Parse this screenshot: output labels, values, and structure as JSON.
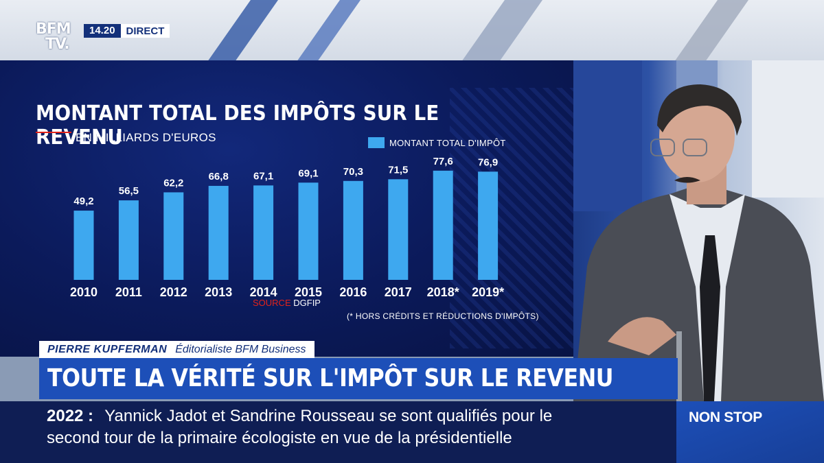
{
  "channel": {
    "logo": "BFM TV.",
    "logo_line1": "BFM",
    "logo_line2": "TV.",
    "time": "14.20",
    "live_label": "DIRECT"
  },
  "chart_data": {
    "type": "bar",
    "title": "MONTANT TOTAL DES IMPÔTS SUR LE REVENU",
    "subtitle": "EN MILLIARDS D'EUROS",
    "categories": [
      "2010",
      "2011",
      "2012",
      "2013",
      "2014",
      "2015",
      "2016",
      "2017",
      "2018*",
      "2019*"
    ],
    "series": [
      {
        "name": "MONTANT TOTAL D'IMPÔT",
        "values": [
          49.2,
          56.5,
          62.2,
          66.8,
          67.1,
          69.1,
          70.3,
          71.5,
          77.6,
          76.9
        ],
        "labels": [
          "49,2",
          "56,5",
          "62,2",
          "66,8",
          "67,1",
          "69,1",
          "70,3",
          "71,5",
          "77,6",
          "76,9"
        ]
      }
    ],
    "ylim": [
      0,
      78
    ],
    "bar_color": "#3ea8ef",
    "source_label": "SOURCE",
    "source_name": "DGFIP",
    "footnote": "(* HORS CRÉDITS ET RÉDUCTIONS D'IMPÔTS)",
    "grid": false,
    "legend_position": "top-right"
  },
  "guest": {
    "name": "PIERRE KUPFERMAN",
    "role": "Éditorialiste BFM Business"
  },
  "headline": "TOUTE LA VÉRITÉ SUR L'IMPÔT SUR LE REVENU",
  "ticker": {
    "tag": "2022 :",
    "line1": "Yannick Jadot et Sandrine Rousseau se sont qualifiés pour le",
    "line2": "second tour de la primaire écologiste en vue de la présidentielle"
  },
  "program_tag": "NON STOP",
  "colors": {
    "brand_blue": "#13307a",
    "accent_blue": "#1d4fb8",
    "accent_red": "#e2231a"
  }
}
